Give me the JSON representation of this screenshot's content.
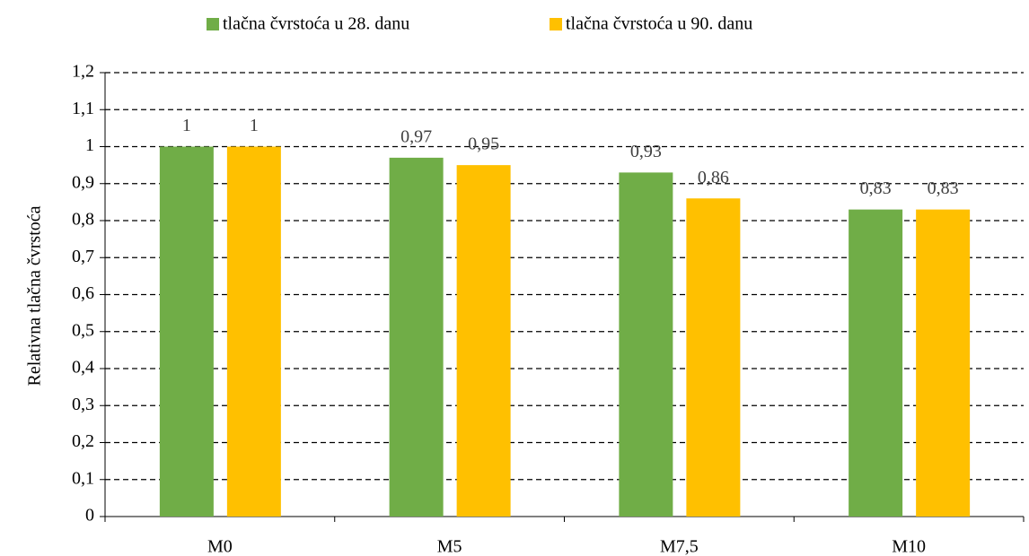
{
  "chart_data": {
    "type": "bar",
    "y_label": "Relativna tlačna čvrstoća",
    "categories": [
      "M0",
      "M5",
      "M7,5",
      "M10"
    ],
    "series": [
      {
        "name": "tlačna čvrstoća u 28. danu",
        "color": "#70ad47",
        "values": [
          1,
          0.97,
          0.93,
          0.83
        ],
        "value_labels": [
          "1",
          "0,97",
          "0,93",
          "0,83"
        ]
      },
      {
        "name": "tlačna čvrstoća u 90. danu",
        "color": "#ffc000",
        "values": [
          1,
          0.95,
          0.86,
          0.83
        ],
        "value_labels": [
          "1",
          "0,95",
          "0,86",
          "0,83"
        ]
      }
    ],
    "ylim": [
      0,
      1.2
    ],
    "yticks": [
      0,
      {
        "value": 0.1,
        "label": "0,1"
      },
      {
        "value": 0.2,
        "label": "0,2"
      },
      {
        "value": 0.3,
        "label": "0,3"
      },
      {
        "value": 0.4,
        "label": "0,4"
      },
      {
        "value": 0.5,
        "label": "0,5"
      },
      {
        "value": 0.6,
        "label": "0,6"
      },
      {
        "value": 0.7,
        "label": "0,7"
      },
      {
        "value": 0.8,
        "label": "0,8"
      },
      {
        "value": 0.9,
        "label": "0,9"
      },
      1,
      {
        "value": 1.1,
        "label": "1,1"
      },
      {
        "value": 1.2,
        "label": "1,2"
      }
    ],
    "grid": true,
    "legend": "top"
  }
}
